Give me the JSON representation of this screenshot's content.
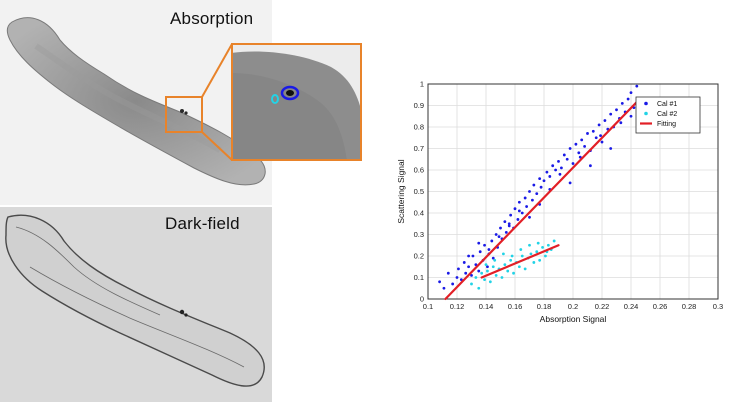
{
  "figure": {
    "absorption_label": "Absorption",
    "darkfield_label": "Dark-field"
  },
  "chart_data": {
    "type": "scatter",
    "title": "",
    "xlabel": "Absorption Signal",
    "ylabel": "Scattering Signal",
    "xlim": [
      0.1,
      0.3
    ],
    "ylim": [
      0,
      1
    ],
    "xticks": [
      "0.1",
      "0.12",
      "0.14",
      "0.16",
      "0.18",
      "0.2",
      "0.22",
      "0.24",
      "0.26",
      "0.28",
      "0.3"
    ],
    "yticks": [
      "0",
      "0.1",
      "0.2",
      "0.3",
      "0.4",
      "0.5",
      "0.6",
      "0.7",
      "0.8",
      "0.9",
      "1"
    ],
    "grid": true,
    "legend_position": "top-right",
    "series": [
      {
        "name": "Cal #1",
        "color": "#1a1ae6",
        "marker": "dot",
        "x": [
          0.108,
          0.111,
          0.114,
          0.117,
          0.12,
          0.121,
          0.123,
          0.125,
          0.126,
          0.128,
          0.13,
          0.131,
          0.133,
          0.135,
          0.136,
          0.138,
          0.139,
          0.141,
          0.142,
          0.144,
          0.145,
          0.147,
          0.148,
          0.15,
          0.151,
          0.153,
          0.154,
          0.156,
          0.157,
          0.159,
          0.16,
          0.162,
          0.163,
          0.165,
          0.167,
          0.168,
          0.17,
          0.172,
          0.173,
          0.175,
          0.177,
          0.178,
          0.18,
          0.182,
          0.184,
          0.186,
          0.188,
          0.19,
          0.192,
          0.194,
          0.196,
          0.198,
          0.2,
          0.202,
          0.204,
          0.206,
          0.208,
          0.21,
          0.212,
          0.214,
          0.216,
          0.218,
          0.22,
          0.222,
          0.224,
          0.226,
          0.228,
          0.23,
          0.232,
          0.234,
          0.236,
          0.238,
          0.24,
          0.242,
          0.244,
          0.128,
          0.135,
          0.142,
          0.149,
          0.156,
          0.163,
          0.17,
          0.177,
          0.184,
          0.191,
          0.198,
          0.205,
          0.212,
          0.219,
          0.226,
          0.233,
          0.24
        ],
        "y": [
          0.08,
          0.05,
          0.12,
          0.07,
          0.1,
          0.14,
          0.09,
          0.17,
          0.12,
          0.15,
          0.11,
          0.2,
          0.16,
          0.13,
          0.22,
          0.18,
          0.25,
          0.15,
          0.21,
          0.27,
          0.19,
          0.3,
          0.24,
          0.33,
          0.28,
          0.36,
          0.31,
          0.35,
          0.39,
          0.33,
          0.42,
          0.37,
          0.45,
          0.4,
          0.47,
          0.43,
          0.5,
          0.46,
          0.53,
          0.49,
          0.56,
          0.52,
          0.55,
          0.59,
          0.57,
          0.62,
          0.6,
          0.64,
          0.61,
          0.67,
          0.65,
          0.7,
          0.63,
          0.72,
          0.68,
          0.74,
          0.71,
          0.77,
          0.69,
          0.78,
          0.75,
          0.81,
          0.73,
          0.83,
          0.79,
          0.86,
          0.8,
          0.88,
          0.84,
          0.91,
          0.87,
          0.93,
          0.96,
          0.89,
          0.99,
          0.2,
          0.26,
          0.23,
          0.29,
          0.34,
          0.41,
          0.38,
          0.44,
          0.51,
          0.58,
          0.54,
          0.66,
          0.62,
          0.76,
          0.7,
          0.82,
          0.85
        ]
      },
      {
        "name": "Cal #2",
        "color": "#22d3e6",
        "marker": "dot",
        "x": [
          0.13,
          0.133,
          0.135,
          0.137,
          0.139,
          0.141,
          0.143,
          0.145,
          0.147,
          0.149,
          0.151,
          0.153,
          0.155,
          0.157,
          0.159,
          0.161,
          0.163,
          0.165,
          0.167,
          0.169,
          0.171,
          0.173,
          0.175,
          0.177,
          0.179,
          0.181,
          0.183,
          0.185,
          0.187,
          0.14,
          0.146,
          0.152,
          0.158,
          0.164,
          0.17,
          0.176,
          0.182
        ],
        "y": [
          0.07,
          0.1,
          0.05,
          0.12,
          0.09,
          0.13,
          0.08,
          0.15,
          0.11,
          0.14,
          0.1,
          0.16,
          0.13,
          0.18,
          0.12,
          0.17,
          0.15,
          0.2,
          0.14,
          0.19,
          0.21,
          0.17,
          0.22,
          0.18,
          0.24,
          0.2,
          0.25,
          0.23,
          0.27,
          0.16,
          0.18,
          0.21,
          0.2,
          0.23,
          0.25,
          0.26,
          0.22
        ]
      }
    ],
    "fit_lines": [
      {
        "name": "Fitting",
        "color": "#e21f26",
        "x": [
          0.112,
          0.246
        ],
        "y": [
          0.0,
          0.93
        ]
      },
      {
        "name": "Fitting",
        "color": "#e21f26",
        "x": [
          0.137,
          0.19
        ],
        "y": [
          0.1,
          0.25
        ]
      }
    ],
    "legend": [
      "Cal #1",
      "Cal #2",
      "Fitting"
    ]
  }
}
